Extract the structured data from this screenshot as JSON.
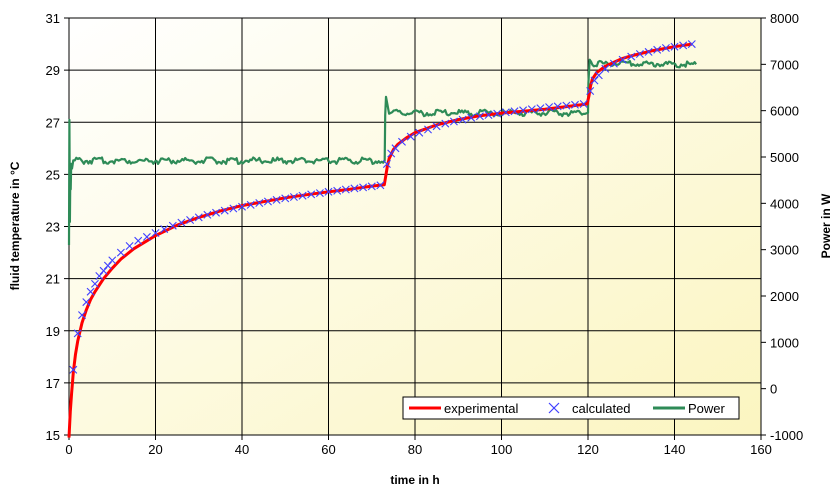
{
  "chart_data": {
    "type": "line",
    "title": "",
    "xlabel": "time in h",
    "ylabel_left": "fluid temperature in °C",
    "ylabel_right": "Power in W",
    "xlim": [
      0,
      160
    ],
    "ylim_left": [
      15,
      31
    ],
    "ylim_right": [
      -1000,
      8000
    ],
    "x_ticks": [
      "0",
      "20",
      "40",
      "60",
      "80",
      "100",
      "120",
      "140",
      "160"
    ],
    "y_left_ticks": [
      "15",
      "17",
      "19",
      "21",
      "23",
      "25",
      "27",
      "29",
      "31"
    ],
    "y_right_ticks": [
      "-1000",
      "0",
      "1000",
      "2000",
      "3000",
      "4000",
      "5000",
      "6000",
      "7000",
      "8000"
    ],
    "grid": true,
    "legend_position": "bottom-right",
    "colors": {
      "experimental": "#ff0000",
      "calculated": "#4040ff",
      "power": "#2e8b57",
      "background_start": "#ffffff",
      "background_end": "#fbf5c0"
    },
    "series": [
      {
        "name": "experimental",
        "axis": "left",
        "style": "line",
        "x": [
          0,
          0.3,
          0.6,
          1,
          1.5,
          2,
          3,
          4,
          5,
          6,
          8,
          10,
          12,
          15,
          18,
          20,
          25,
          30,
          35,
          40,
          45,
          50,
          55,
          60,
          65,
          70,
          72.9,
          73.2,
          73.6,
          74,
          75,
          76,
          78,
          80,
          85,
          90,
          95,
          100,
          105,
          110,
          115,
          119.8,
          120.2,
          120.6,
          121,
          122,
          124,
          126,
          128,
          130,
          135,
          140,
          144
        ],
        "y": [
          14.9,
          15.9,
          16.6,
          17.4,
          18.1,
          18.6,
          19.3,
          19.8,
          20.2,
          20.5,
          21.0,
          21.4,
          21.75,
          22.15,
          22.45,
          22.65,
          23.05,
          23.35,
          23.6,
          23.8,
          23.95,
          24.1,
          24.22,
          24.33,
          24.43,
          24.55,
          24.6,
          24.9,
          25.3,
          25.6,
          25.95,
          26.15,
          26.4,
          26.6,
          26.9,
          27.1,
          27.25,
          27.35,
          27.42,
          27.5,
          27.6,
          27.7,
          28.0,
          28.4,
          28.65,
          28.9,
          29.15,
          29.3,
          29.45,
          29.55,
          29.75,
          29.9,
          30.0
        ]
      },
      {
        "name": "calculated",
        "axis": "left",
        "style": "marker",
        "x": [
          1,
          2,
          3,
          4,
          5,
          6,
          7,
          8,
          9,
          10,
          12,
          14,
          16,
          18,
          20,
          22,
          24,
          26,
          28,
          30,
          32,
          34,
          36,
          38,
          40,
          42,
          44,
          46,
          48,
          50,
          52,
          54,
          56,
          58,
          60,
          62,
          64,
          66,
          68,
          70,
          72,
          73.5,
          74.5,
          75.5,
          77,
          79,
          81,
          83,
          85,
          87,
          89,
          91,
          93,
          95,
          97,
          99,
          101,
          103,
          105,
          107,
          109,
          111,
          113,
          115,
          117,
          119,
          120.5,
          121.5,
          122.5,
          124,
          126,
          128,
          130,
          132,
          134,
          136,
          138,
          140,
          142,
          144
        ],
        "y": [
          17.5,
          18.9,
          19.6,
          20.1,
          20.5,
          20.8,
          21.1,
          21.3,
          21.5,
          21.7,
          22.0,
          22.25,
          22.45,
          22.6,
          22.75,
          22.9,
          23.03,
          23.15,
          23.25,
          23.35,
          23.45,
          23.53,
          23.61,
          23.69,
          23.76,
          23.83,
          23.9,
          23.96,
          24.02,
          24.08,
          24.13,
          24.18,
          24.23,
          24.28,
          24.33,
          24.37,
          24.42,
          24.46,
          24.5,
          24.54,
          24.58,
          25.4,
          25.8,
          26.0,
          26.25,
          26.45,
          26.6,
          26.72,
          26.85,
          26.95,
          27.03,
          27.1,
          27.17,
          27.23,
          27.28,
          27.33,
          27.38,
          27.42,
          27.46,
          27.5,
          27.54,
          27.58,
          27.61,
          27.64,
          27.67,
          27.7,
          28.2,
          28.6,
          28.8,
          29.05,
          29.25,
          29.4,
          29.52,
          29.62,
          29.7,
          29.78,
          29.85,
          29.9,
          29.95,
          30.0
        ]
      },
      {
        "name": "Power",
        "axis": "right",
        "style": "line",
        "x": [
          0,
          0.1,
          0.2,
          0.3,
          0.4,
          0.5,
          0.7,
          1,
          73,
          73.1,
          73.3,
          74,
          120,
          120.1,
          120.4,
          121,
          145
        ],
        "y": [
          3100,
          5800,
          3600,
          4600,
          4300,
          4850,
          4750,
          4920,
          4920,
          5900,
          6300,
          5950,
          5950,
          6600,
          7100,
          7020,
          7000
        ]
      }
    ]
  }
}
